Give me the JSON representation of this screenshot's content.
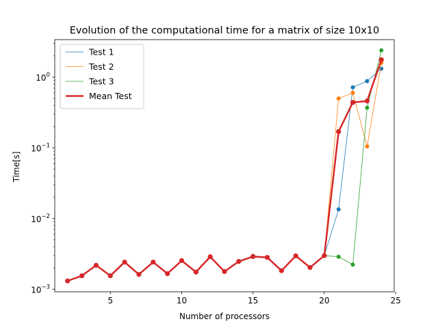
{
  "chart_data": {
    "type": "line",
    "title": "Evolution of the computational time for a matrix of size 10x10",
    "xlabel": "Number of processors",
    "ylabel": "Time[s]",
    "xlim": [
      1.1,
      24.9
    ],
    "ylim": [
      0.00092,
      3.4
    ],
    "yscale": "log",
    "x_ticks": [
      5,
      10,
      15,
      20,
      25
    ],
    "y_ticks": [
      {
        "value": 0.001,
        "base": "10",
        "exp": "−3"
      },
      {
        "value": 0.01,
        "base": "10",
        "exp": "−2"
      },
      {
        "value": 0.1,
        "base": "10",
        "exp": "−1"
      },
      {
        "value": 1,
        "base": "10",
        "exp": "0"
      }
    ],
    "grid": false,
    "legend_position": "top-left",
    "x": [
      2,
      3,
      4,
      5,
      6,
      7,
      8,
      9,
      10,
      11,
      12,
      13,
      14,
      15,
      16,
      17,
      18,
      19,
      20,
      21,
      22,
      23,
      24
    ],
    "series": [
      {
        "name": "Test 1",
        "color": "#1f77b4",
        "linewidth": 0.8,
        "values": [
          0.00131,
          0.00155,
          0.00218,
          0.00155,
          0.00242,
          0.00162,
          0.00242,
          0.00166,
          0.00254,
          0.00175,
          0.00288,
          0.00178,
          0.00247,
          0.00297,
          0.00282,
          0.00183,
          0.00297,
          0.00203,
          0.00299,
          0.0135,
          0.72,
          0.88,
          1.32
        ]
      },
      {
        "name": "Test 2",
        "color": "#ff7f0e",
        "linewidth": 0.8,
        "values": [
          0.00131,
          0.00155,
          0.00218,
          0.00155,
          0.00242,
          0.00162,
          0.00242,
          0.00166,
          0.00254,
          0.00175,
          0.00288,
          0.00178,
          0.00247,
          0.00287,
          0.00282,
          0.00183,
          0.00297,
          0.00203,
          0.00299,
          0.5,
          0.6,
          0.105,
          1.6
        ]
      },
      {
        "name": "Test 3",
        "color": "#2ca02c",
        "linewidth": 0.8,
        "values": [
          0.00131,
          0.00155,
          0.00218,
          0.00155,
          0.00242,
          0.00162,
          0.00242,
          0.00166,
          0.00254,
          0.00175,
          0.00288,
          0.00178,
          0.00247,
          0.00287,
          0.00282,
          0.00183,
          0.00297,
          0.00203,
          0.00299,
          0.00288,
          0.00223,
          0.37,
          2.4
        ]
      },
      {
        "name": "Mean Test",
        "color": "#d62728",
        "linewidth": 2.5,
        "values": [
          0.00131,
          0.00155,
          0.00218,
          0.00155,
          0.00242,
          0.00162,
          0.00242,
          0.00166,
          0.00254,
          0.00175,
          0.00288,
          0.00178,
          0.00247,
          0.0029,
          0.00282,
          0.00183,
          0.00297,
          0.00203,
          0.00299,
          0.17,
          0.44,
          0.46,
          1.77
        ]
      }
    ]
  }
}
